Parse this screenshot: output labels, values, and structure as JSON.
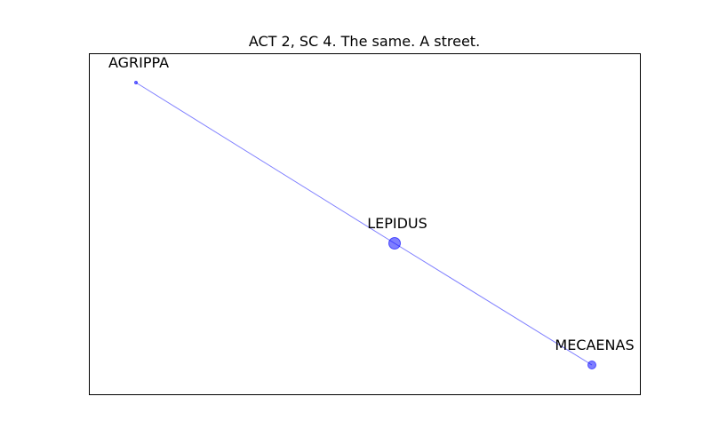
{
  "title": "ACT 2, SC 4. The same. A street.",
  "colors": {
    "node": "#0000ff",
    "edge": "#0000ff",
    "frame": "#000000",
    "background": "#ffffff"
  },
  "network": {
    "nodes": [
      {
        "id": "agrippa",
        "label": "AGRIPPA",
        "weight": 1
      },
      {
        "id": "lepidus",
        "label": "LEPIDUS",
        "weight": 3
      },
      {
        "id": "mecaenas",
        "label": "MECAENAS",
        "weight": 2
      }
    ],
    "edges": [
      {
        "source": "agrippa",
        "target": "lepidus"
      },
      {
        "source": "lepidus",
        "target": "mecaenas"
      }
    ]
  }
}
